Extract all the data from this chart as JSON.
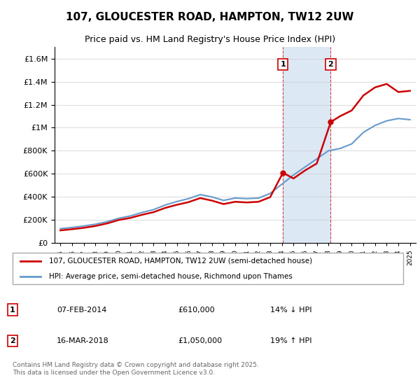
{
  "title_line1": "107, GLOUCESTER ROAD, HAMPTON, TW12 2UW",
  "title_line2": "Price paid vs. HM Land Registry's House Price Index (HPI)",
  "legend_line1": "107, GLOUCESTER ROAD, HAMPTON, TW12 2UW (semi-detached house)",
  "legend_line2": "HPI: Average price, semi-detached house, Richmond upon Thames",
  "footer": "Contains HM Land Registry data © Crown copyright and database right 2025.\nThis data is licensed under the Open Government Licence v3.0.",
  "sale1_label": "1",
  "sale1_date": "07-FEB-2014",
  "sale1_price": "£610,000",
  "sale1_hpi": "14% ↓ HPI",
  "sale2_label": "2",
  "sale2_date": "16-MAR-2018",
  "sale2_price": "£1,050,000",
  "sale2_hpi": "19% ↑ HPI",
  "red_line_color": "#cc0000",
  "blue_line_color": "#6699cc",
  "shaded_region_color": "#dde8f5",
  "vline_color": "#cc0000",
  "ylim_min": 0,
  "ylim_max": 1700000,
  "sale1_x": 2014.1,
  "sale2_x": 2018.2,
  "hpi_years": [
    1995,
    1996,
    1997,
    1998,
    1999,
    2000,
    2001,
    2002,
    2003,
    2004,
    2005,
    2006,
    2007,
    2008,
    2009,
    2010,
    2011,
    2012,
    2013,
    2014,
    2015,
    2016,
    2017,
    2018,
    2019,
    2020,
    2021,
    2022,
    2023,
    2024,
    2025
  ],
  "hpi_values": [
    125000,
    135000,
    148000,
    163000,
    185000,
    215000,
    235000,
    265000,
    290000,
    330000,
    360000,
    385000,
    420000,
    400000,
    370000,
    390000,
    385000,
    390000,
    430000,
    510000,
    590000,
    660000,
    730000,
    800000,
    820000,
    860000,
    960000,
    1020000,
    1060000,
    1080000,
    1070000
  ],
  "red_years": [
    1995,
    1996,
    1997,
    1998,
    1999,
    2000,
    2001,
    2002,
    2003,
    2004,
    2005,
    2006,
    2007,
    2008,
    2009,
    2010,
    2011,
    2012,
    2013,
    2014.1,
    2015,
    2016,
    2017,
    2018.2,
    2019,
    2020,
    2021,
    2022,
    2023,
    2024,
    2025
  ],
  "red_values": [
    110000,
    120000,
    132000,
    148000,
    170000,
    200000,
    218000,
    245000,
    268000,
    305000,
    332000,
    355000,
    390000,
    368000,
    338000,
    358000,
    352000,
    358000,
    398000,
    610000,
    560000,
    630000,
    690000,
    1050000,
    1100000,
    1150000,
    1280000,
    1350000,
    1380000,
    1310000,
    1320000
  ]
}
